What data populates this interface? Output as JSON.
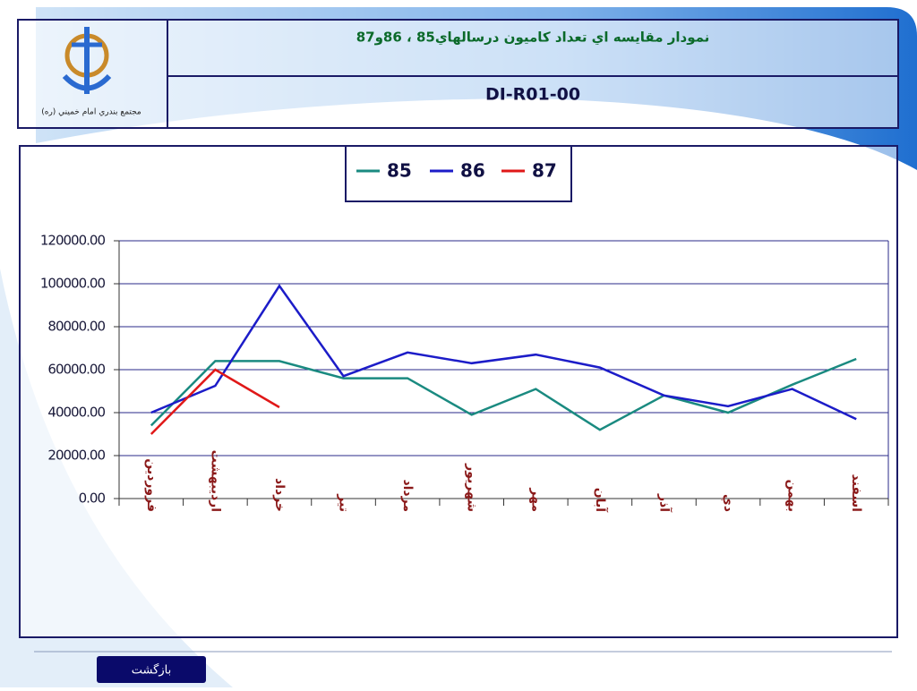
{
  "header": {
    "title": "نمودار مقايسه اي تعداد كاميون درسالهاي85 ، 86و87",
    "code": "DI-R01-00",
    "logo_caption": "مجتمع بندري امام خميني (ره)"
  },
  "button": {
    "label": "بازگشت"
  },
  "chart_data": {
    "type": "line",
    "categories": [
      "فروردين",
      "ارديبهشت",
      "خرداد",
      "تير",
      "مرداد",
      "شهريور",
      "مهر",
      "آبان",
      "آذر",
      "دي",
      "بهمن",
      "اسفند"
    ],
    "series": [
      {
        "name": "85",
        "color": "#1a8a80",
        "values": [
          34000,
          64000,
          64000,
          56000,
          56000,
          39000,
          51000,
          32000,
          48000,
          40000,
          53000,
          65000
        ]
      },
      {
        "name": "86",
        "color": "#1c1cc8",
        "values": [
          40000,
          52500,
          99000,
          57000,
          68000,
          63000,
          67000,
          61000,
          48000,
          43000,
          51000,
          37000
        ]
      },
      {
        "name": "87",
        "color": "#e01818",
        "values": [
          30000,
          60000,
          42500,
          null,
          null,
          null,
          null,
          null,
          null,
          null,
          null,
          null
        ]
      }
    ],
    "ylim": [
      0,
      120000
    ],
    "yticks": [
      {
        "value": 0,
        "label": "0.00"
      },
      {
        "value": 20000,
        "label": "20000.00"
      },
      {
        "value": 40000,
        "label": "40000.00"
      },
      {
        "value": 60000,
        "label": "60000.00"
      },
      {
        "value": 80000,
        "label": "80000.00"
      },
      {
        "value": 100000,
        "label": "100000.00"
      },
      {
        "value": 120000,
        "label": "120000.00"
      }
    ],
    "grid": true,
    "legend": "top"
  }
}
